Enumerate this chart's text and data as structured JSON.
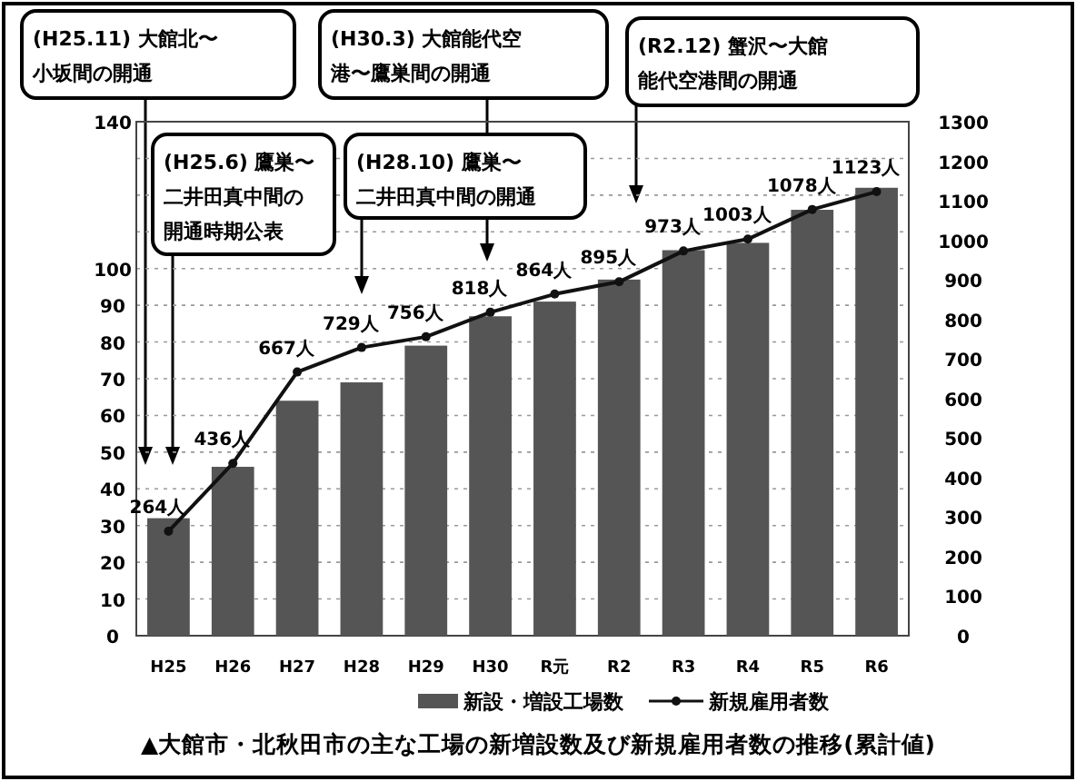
{
  "chart_data": {
    "type": "bar",
    "categories": [
      "H25",
      "H26",
      "H27",
      "H28",
      "H29",
      "H30",
      "R元",
      "R2",
      "R3",
      "R4",
      "R5",
      "R6"
    ],
    "series": [
      {
        "name": "新設・増設工場数",
        "color": "#555555",
        "values": [
          32,
          46,
          64,
          69,
          79,
          87,
          91,
          97,
          105,
          107,
          116,
          122
        ]
      },
      {
        "name": "新規雇用者数",
        "type": "line",
        "axis": "y2",
        "color": "#111111",
        "marker": "circle",
        "values": [
          264,
          436,
          667,
          729,
          756,
          818,
          864,
          895,
          973,
          1003,
          1078,
          1123
        ],
        "value_labels": [
          "264人",
          "436人",
          "667人",
          "729人",
          "756人",
          "818人",
          "864人",
          "895人",
          "973人",
          "1003人",
          "1078人",
          "1123人"
        ]
      }
    ],
    "ylim": [
      0,
      140
    ],
    "yticks": [
      0,
      10,
      20,
      30,
      40,
      50,
      60,
      70,
      80,
      90,
      100,
      {
        "value": 110,
        "label": null
      },
      {
        "value": 120,
        "label": null
      },
      {
        "value": 130,
        "label": null
      },
      140
    ],
    "y2lim": [
      0,
      1300
    ],
    "y2ticks": [
      0,
      100,
      200,
      300,
      400,
      500,
      600,
      700,
      800,
      900,
      1000,
      1100,
      1200,
      1300
    ],
    "grid": "y",
    "legend": "bottom",
    "annotations": [
      "(H25.11) 大館北〜小坂間の開通",
      "(H25.6) 鷹巣〜二井田真中間の開通時期公表",
      "(H28.10) 鷹巣〜二井田真中間の開通",
      "(H30.3) 大館能代空港〜鷹巣間の開通",
      "(R2.12) 蟹沢〜大館能代空港間の開通",
      "▲大館市・北秋田市の主な工場の新増設数及び新規雇用者数の推移(累計値)"
    ]
  }
}
